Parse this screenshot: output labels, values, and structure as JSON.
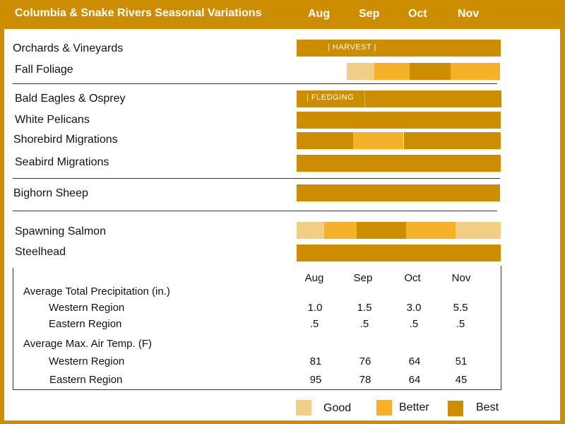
{
  "header": {
    "title": "Columbia & Snake Rivers Seasonal Variations",
    "months": [
      "Aug",
      "Sep",
      "Oct",
      "Nov"
    ]
  },
  "rows": {
    "orchards": {
      "label": "Orchards & Vineyards",
      "note": "|   HARVEST   |"
    },
    "foliage": {
      "label": "Fall Foliage"
    },
    "eagles": {
      "label": "Bald Eagles & Osprey",
      "note": "|  FLEDGING"
    },
    "pelicans": {
      "label": "White Pelicans"
    },
    "shorebird": {
      "label": "Shorebird Migrations"
    },
    "seabird": {
      "label": "Seabird Migrations"
    },
    "bighorn": {
      "label": "Bighorn Sheep"
    },
    "salmon": {
      "label": "Spawning Salmon"
    },
    "steelhead": {
      "label": "Steelhead"
    }
  },
  "table": {
    "months": [
      "Aug",
      "Sep",
      "Oct",
      "Nov"
    ],
    "precip": {
      "label": "Average Total Precipitation (in.)",
      "western": {
        "label": "Western Region",
        "values": [
          "1.0",
          "1.5",
          "3.0",
          "5.5"
        ]
      },
      "eastern": {
        "label": "Eastern Region",
        "values": [
          ".5",
          ".5",
          ".5",
          ".5"
        ]
      }
    },
    "temp": {
      "label": "Average Max. Air Temp. (F)",
      "western": {
        "label": "Western Region",
        "values": [
          "81",
          "76",
          "64",
          "51"
        ]
      },
      "eastern": {
        "label": "Eastern Region",
        "values": [
          "95",
          "78",
          "64",
          "45"
        ]
      }
    }
  },
  "legend": {
    "good": "Good",
    "better": "Better",
    "best": "Best"
  },
  "colors": {
    "best": "#cc8e00",
    "better": "#f5b12a",
    "good": "#f1cd86"
  }
}
